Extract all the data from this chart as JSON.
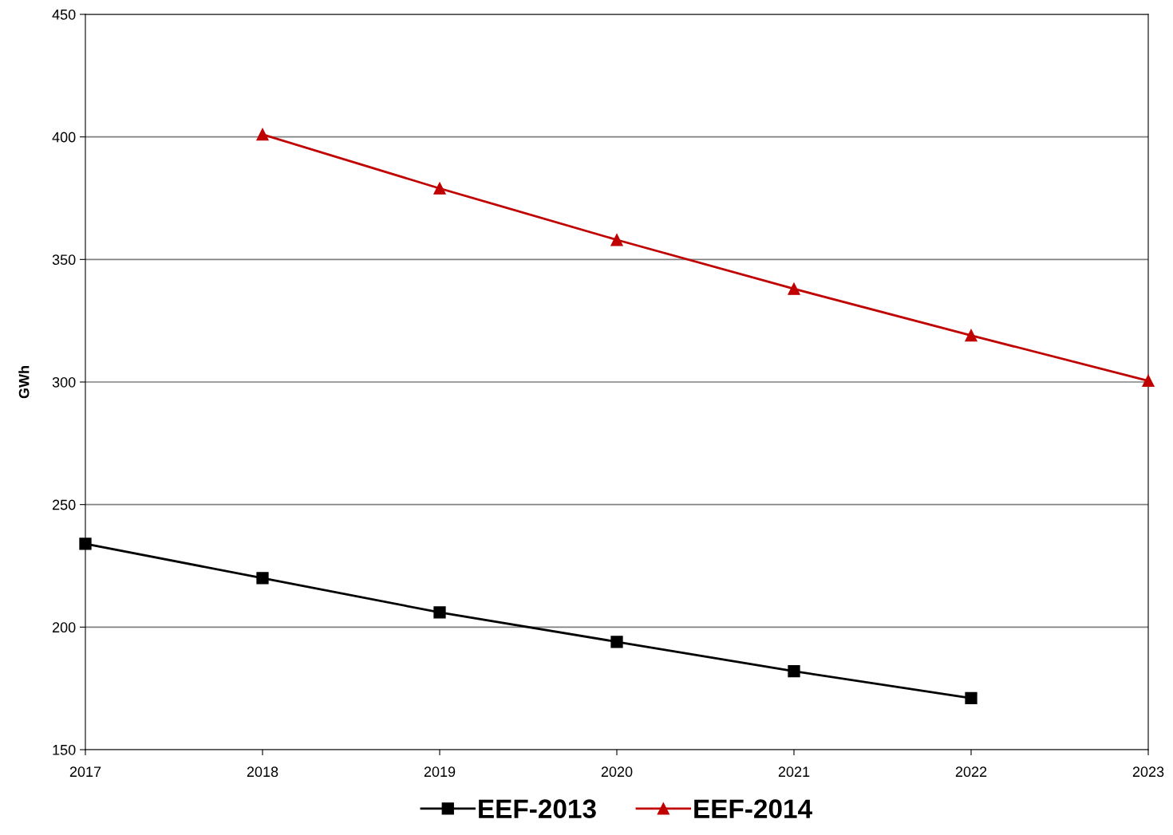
{
  "chart_data": {
    "type": "line",
    "ylabel": "GWh",
    "xlim": [
      2017,
      2023
    ],
    "xticks": [
      2017,
      2018,
      2019,
      2020,
      2021,
      2022,
      2023
    ],
    "ylim": [
      150,
      450
    ],
    "yticks": [
      150,
      200,
      250,
      300,
      350,
      400,
      450
    ],
    "grid": "y",
    "legend": "bottom",
    "series": [
      {
        "name": "EEF-2013",
        "color": "#000000",
        "marker": "square",
        "x": [
          2017,
          2018,
          2019,
          2020,
          2021,
          2022
        ],
        "values": [
          234,
          220,
          206,
          194,
          182,
          171
        ]
      },
      {
        "name": "EEF-2014",
        "color": "#c00000",
        "marker": "triangle",
        "x": [
          2018,
          2019,
          2020,
          2021,
          2022,
          2023
        ],
        "values": [
          401,
          379,
          358,
          338,
          319,
          300.5
        ]
      }
    ]
  }
}
